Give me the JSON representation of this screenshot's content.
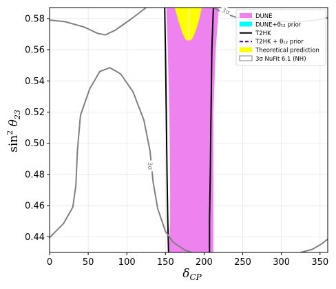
{
  "chart_data": {
    "type": "contour",
    "xlabel": "δ",
    "xlabel_sub": "CP",
    "ylabel": "sin",
    "ylabel_sup": "2",
    "ylabel_theta": " θ",
    "ylabel_sub": "23",
    "xlim": [
      0,
      360
    ],
    "ylim": [
      0.43,
      0.587
    ],
    "xticks": [
      "0",
      "50",
      "100",
      "150",
      "200",
      "250",
      "300",
      "350"
    ],
    "xtick_values": [
      0,
      50,
      100,
      150,
      200,
      250,
      300,
      350
    ],
    "yticks": [
      "0.44",
      "0.46",
      "0.48",
      "0.50",
      "0.52",
      "0.54",
      "0.56",
      "0.58"
    ],
    "ytick_values": [
      0.44,
      0.46,
      0.48,
      0.5,
      0.52,
      0.54,
      0.56,
      0.58
    ],
    "grid": true,
    "legend_position": "top-right",
    "legend": [
      {
        "label": "DUNE",
        "kind": "patch",
        "color": "#ee82ee"
      },
      {
        "label": "DUNE+θ₁₂ prior",
        "kind": "patch",
        "color": "#00ffff"
      },
      {
        "label": "T2HK",
        "kind": "line",
        "color": "#000000",
        "dash": "solid"
      },
      {
        "label": "T2HK + θ₁₂ prior",
        "kind": "line",
        "color": "#4b0082",
        "dash": "dashed"
      },
      {
        "label": "Theoretical prediction",
        "kind": "patch",
        "color": "#ffff00"
      },
      {
        "label": "3σ NuFit 6.1 (NH)",
        "kind": "outline",
        "color": "#808080"
      }
    ],
    "contour_labels": [
      {
        "text": "3σ",
        "x": 130,
        "y": 0.4855,
        "rotate": 90
      },
      {
        "text": "3σ",
        "x": 228,
        "y": 0.5847,
        "rotate": 25
      }
    ],
    "series": [
      {
        "name": "DUNE",
        "kind": "fill",
        "color": "#ee82ee",
        "points": [
          [
            151,
            0.587
          ],
          [
            153,
            0.56
          ],
          [
            155,
            0.52
          ],
          [
            156,
            0.48
          ],
          [
            156,
            0.45
          ],
          [
            154,
            0.43
          ],
          [
            212,
            0.43
          ],
          [
            212,
            0.47
          ],
          [
            212,
            0.52
          ],
          [
            215,
            0.56
          ],
          [
            219,
            0.587
          ]
        ]
      },
      {
        "name": "Theoretical prediction",
        "kind": "fill",
        "color": "#ffff00",
        "points": [
          [
            162,
            0.587
          ],
          [
            167,
            0.578
          ],
          [
            172,
            0.5705
          ],
          [
            176,
            0.5665
          ],
          [
            180,
            0.5658
          ],
          [
            184,
            0.5665
          ],
          [
            188,
            0.5705
          ],
          [
            193,
            0.578
          ],
          [
            197,
            0.587
          ]
        ]
      },
      {
        "name": "Theoretical prediction center",
        "kind": "line",
        "color": "#ffffff",
        "width": 1,
        "points": [
          [
            180,
            0.587
          ],
          [
            180,
            0.567
          ]
        ]
      },
      {
        "name": "T2HK",
        "kind": "line",
        "color": "#000000",
        "width": 2,
        "points": [
          [
            149,
            0.587
          ],
          [
            150,
            0.56
          ],
          [
            151,
            0.52
          ],
          [
            152,
            0.48
          ],
          [
            153,
            0.45
          ],
          [
            154,
            0.43
          ]
        ]
      },
      {
        "name": "T2HK",
        "kind": "line",
        "color": "#000000",
        "width": 2,
        "points": [
          [
            212,
            0.587
          ],
          [
            210,
            0.56
          ],
          [
            209,
            0.52
          ],
          [
            208,
            0.48
          ],
          [
            207,
            0.45
          ],
          [
            207,
            0.43
          ]
        ]
      },
      {
        "name": "3σ NuFit 6.1 (NH)",
        "kind": "line",
        "color": "#808080",
        "width": 2,
        "points": [
          [
            0,
            0.579
          ],
          [
            20,
            0.578
          ],
          [
            45,
            0.5745
          ],
          [
            62,
            0.5705
          ],
          [
            72,
            0.5695
          ],
          [
            85,
            0.5725
          ],
          [
            105,
            0.5795
          ],
          [
            125,
            0.587
          ]
        ]
      },
      {
        "name": "3σ NuFit 6.1 (NH)",
        "kind": "line",
        "color": "#808080",
        "width": 2,
        "points": [
          [
            0,
            0.4395
          ],
          [
            18,
            0.4485
          ],
          [
            30,
            0.459
          ],
          [
            34,
            0.473
          ],
          [
            36,
            0.495
          ],
          [
            40,
            0.518
          ],
          [
            52,
            0.535
          ],
          [
            65,
            0.546
          ],
          [
            78,
            0.5485
          ],
          [
            92,
            0.5445
          ],
          [
            108,
            0.533
          ],
          [
            122,
            0.515
          ],
          [
            130,
            0.495
          ],
          [
            134,
            0.475
          ],
          [
            140,
            0.458
          ],
          [
            150,
            0.4435
          ],
          [
            160,
            0.4365
          ],
          [
            175,
            0.4315
          ],
          [
            184,
            0.43
          ]
        ]
      },
      {
        "name": "3σ NuFit 6.1 (NH)",
        "kind": "line",
        "color": "#808080",
        "width": 2,
        "points": [
          [
            212,
            0.587
          ],
          [
            225,
            0.5835
          ],
          [
            240,
            0.581
          ],
          [
            260,
            0.5795
          ],
          [
            290,
            0.5785
          ],
          [
            320,
            0.5778
          ],
          [
            345,
            0.579
          ],
          [
            360,
            0.5805
          ]
        ]
      },
      {
        "name": "3σ NuFit 6.1 (NH)",
        "kind": "line",
        "color": "#808080",
        "width": 2,
        "points": [
          [
            325,
            0.43
          ],
          [
            340,
            0.432
          ],
          [
            352,
            0.4355
          ],
          [
            360,
            0.4385
          ]
        ]
      }
    ]
  }
}
